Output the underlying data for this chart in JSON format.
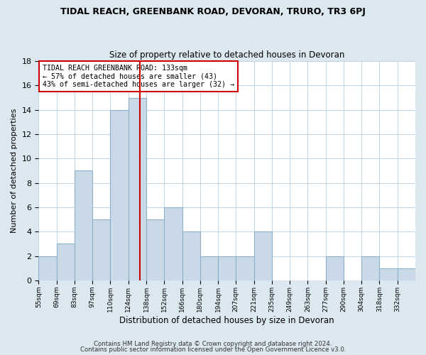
{
  "title": "TIDAL REACH, GREENBANK ROAD, DEVORAN, TRURO, TR3 6PJ",
  "subtitle": "Size of property relative to detached houses in Devoran",
  "xlabel": "Distribution of detached houses by size in Devoran",
  "ylabel": "Number of detached properties",
  "categories": [
    "55sqm",
    "69sqm",
    "83sqm",
    "97sqm",
    "110sqm",
    "124sqm",
    "138sqm",
    "152sqm",
    "166sqm",
    "180sqm",
    "194sqm",
    "207sqm",
    "221sqm",
    "235sqm",
    "249sqm",
    "263sqm",
    "277sqm",
    "290sqm",
    "304sqm",
    "318sqm",
    "332sqm"
  ],
  "values": [
    2,
    3,
    9,
    5,
    14,
    15,
    5,
    6,
    4,
    2,
    2,
    2,
    4,
    0,
    0,
    0,
    2,
    0,
    2,
    1,
    1
  ],
  "bar_color": "#c9d9e8",
  "bar_edge_color": "#8ab0cc",
  "property_line_index": 5.35,
  "annotation_text": "TIDAL REACH GREENBANK ROAD: 133sqm\n← 57% of detached houses are smaller (43)\n43% of semi-detached houses are larger (32) →",
  "annotation_box_color": "#ffffff",
  "annotation_box_edgecolor": "#cc0000",
  "line_color": "#cc0000",
  "ylim": [
    0,
    18
  ],
  "yticks": [
    0,
    2,
    4,
    6,
    8,
    10,
    12,
    14,
    16,
    18
  ],
  "footer1": "Contains HM Land Registry data © Crown copyright and database right 2024.",
  "footer2": "Contains public sector information licensed under the Open Government Licence v3.0.",
  "bg_color": "#dce8f0",
  "plot_bg_color": "#ffffff",
  "grid_color": "#b8cfe0"
}
